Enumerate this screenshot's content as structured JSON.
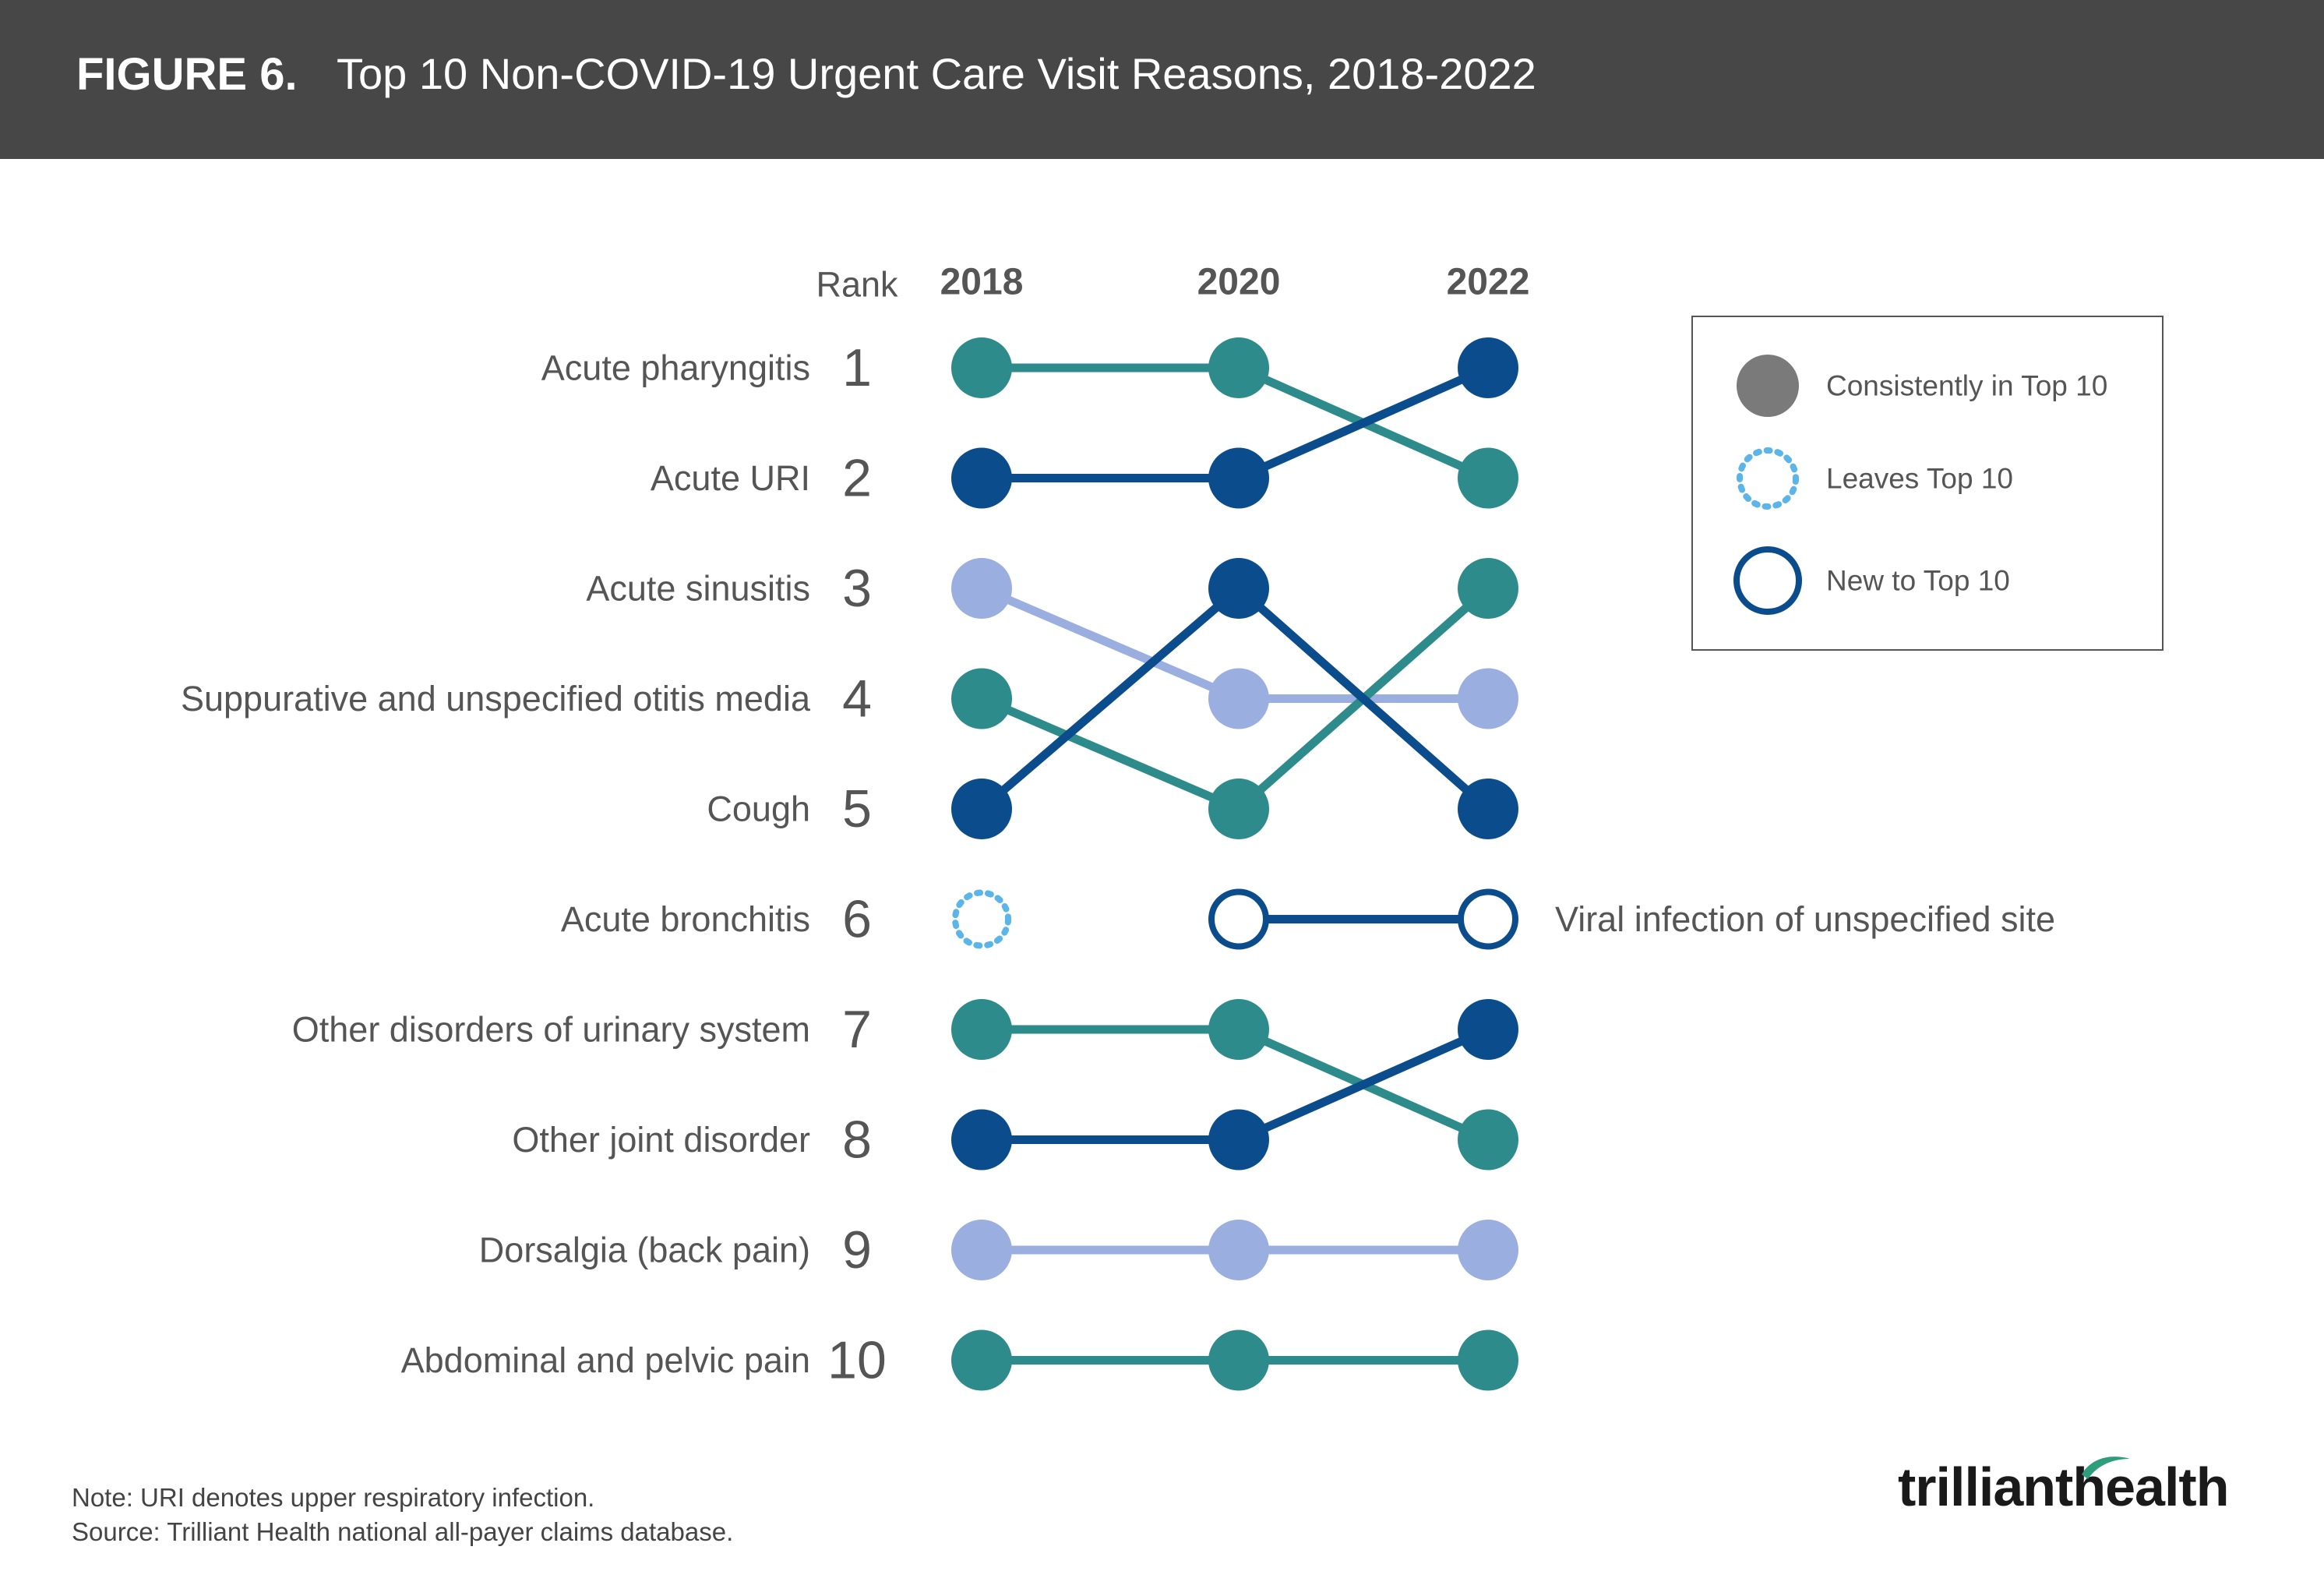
{
  "header": {
    "figure_label": "FIGURE 6.",
    "title": "Top 10 Non-COVID-19 Urgent Care Visit Reasons, 2018-2022"
  },
  "colors": {
    "teal": "#2e8b8b",
    "navy": "#0b4d8c",
    "lavender": "#9aafdf",
    "light_blue": "#5bb5e8",
    "legend_gray": "#7a7a7a",
    "header_bg": "#474747"
  },
  "chart_data": {
    "type": "bump",
    "rank_label": "Rank",
    "years": [
      "2018",
      "2020",
      "2022"
    ],
    "ranks": [
      1,
      2,
      3,
      4,
      5,
      6,
      7,
      8,
      9,
      10
    ],
    "row_labels": [
      "Acute pharyngitis",
      "Acute URI",
      "Acute sinusitis",
      "Suppurative and unspecified otitis media",
      "Cough",
      "Acute bronchitis",
      "Other disorders of urinary system",
      "Other joint disorder",
      "Dorsalgia (back pain)",
      "Abdominal and pelvic pain"
    ],
    "series": [
      {
        "ranks": [
          1,
          1,
          2
        ],
        "color": "teal",
        "status": "consistent"
      },
      {
        "ranks": [
          2,
          2,
          1
        ],
        "color": "navy",
        "status": "consistent"
      },
      {
        "ranks": [
          3,
          4,
          4
        ],
        "color": "lavender",
        "status": "consistent"
      },
      {
        "ranks": [
          4,
          5,
          3
        ],
        "color": "teal",
        "status": "consistent"
      },
      {
        "ranks": [
          5,
          3,
          5
        ],
        "color": "navy",
        "status": "consistent"
      },
      {
        "ranks": [
          6,
          null,
          null
        ],
        "color": "light_blue",
        "status": "leaves"
      },
      {
        "name": "Viral infection of unspecified site",
        "ranks": [
          null,
          6,
          6
        ],
        "color": "navy",
        "status": "new"
      },
      {
        "ranks": [
          7,
          7,
          8
        ],
        "color": "teal",
        "status": "consistent"
      },
      {
        "ranks": [
          8,
          8,
          7
        ],
        "color": "navy",
        "status": "consistent"
      },
      {
        "ranks": [
          9,
          9,
          9
        ],
        "color": "lavender",
        "status": "consistent"
      },
      {
        "ranks": [
          10,
          10,
          10
        ],
        "color": "teal",
        "status": "consistent"
      }
    ],
    "legend_position": "top-right",
    "legend": [
      {
        "label": "Consistently in Top 10",
        "marker": "filled"
      },
      {
        "label": "Leaves Top 10",
        "marker": "dotted"
      },
      {
        "label": "New to Top 10",
        "marker": "ring"
      }
    ]
  },
  "notes": {
    "note": "Note: URI denotes upper respiratory infection.",
    "source": "Source: Trilliant Health national all-payer claims database."
  },
  "logo": {
    "text_left": "trilliant",
    "text_right": "health"
  }
}
